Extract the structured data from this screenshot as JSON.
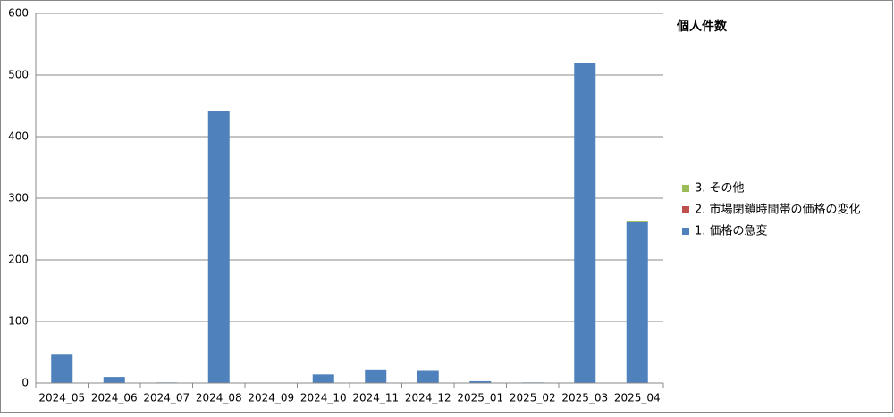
{
  "chart_data": {
    "type": "stacked_bar",
    "legend_title": "個人件数",
    "categories": [
      "2024_05",
      "2024_06",
      "2024_07",
      "2024_08",
      "2024_09",
      "2024_10",
      "2024_11",
      "2024_12",
      "2025_01",
      "2025_02",
      "2025_03",
      "2025_04"
    ],
    "series": [
      {
        "name": "1. 価格の急変",
        "color": "#4f81bd",
        "values": [
          46,
          10,
          1,
          442,
          0,
          14,
          22,
          21,
          3,
          1,
          520,
          261
        ]
      },
      {
        "name": "2. 市場閉鎖時間帯の価格の変化",
        "color": "#c0504d",
        "values": [
          0,
          0,
          0,
          0,
          0,
          0,
          0,
          0,
          0,
          0,
          0,
          0
        ]
      },
      {
        "name": "3. その他",
        "color": "#9bbb59",
        "values": [
          0,
          0,
          0,
          0,
          0,
          0,
          0,
          0,
          0,
          0,
          0,
          2
        ]
      }
    ],
    "ylim": [
      0,
      600
    ],
    "yticks": [
      0,
      100,
      200,
      300,
      400,
      500,
      600
    ],
    "grid": true,
    "legend": "right"
  }
}
